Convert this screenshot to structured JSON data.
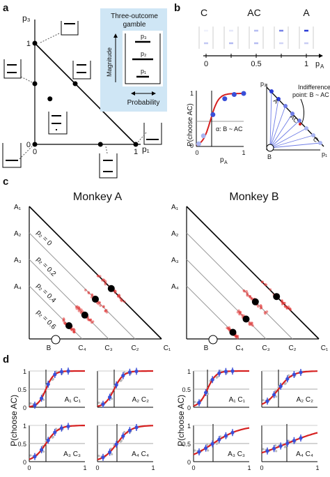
{
  "panels": {
    "a": {
      "letter": "a",
      "y_axis": "p₃",
      "x_axis": "p₁",
      "ticks_x": [
        "0",
        "1"
      ],
      "ticks_y": [
        "0",
        "1"
      ],
      "x_tick_pos": [
        0,
        1
      ],
      "y_tick_pos": [
        0,
        1
      ],
      "points": [
        {
          "p1": 0,
          "p3": 1
        },
        {
          "p1": 0,
          "p3": 0.6
        },
        {
          "p1": 0.4,
          "p3": 0.6
        },
        {
          "p1": 0.15,
          "p3": 0.45
        },
        {
          "p1": 0,
          "p3": 0
        },
        {
          "p1": 0.65,
          "p3": 0
        },
        {
          "p1": 1,
          "p3": 0
        }
      ],
      "inset": {
        "title_line1": "Three-outcome",
        "title_line2": "gamble",
        "magnitude": "Magnitude",
        "probability": "Probability",
        "p3": "p₃",
        "p2": "p₂",
        "p1": "p₁"
      }
    },
    "b": {
      "letter": "b",
      "labels": {
        "C": "C",
        "AC": "AC",
        "A": "A"
      },
      "axis_label": "p",
      "axis_sub": "A",
      "ticks": [
        "0",
        "0.5",
        "1"
      ],
      "psych": {
        "ylabel": "P(choose AC)",
        "ticks_y": [
          "0",
          "1"
        ],
        "ticks_x": [
          "0",
          "1"
        ],
        "xlabel": "p",
        "xlabel_sub": "A",
        "alpha_label": "α: B ~ AC",
        "points": [
          {
            "p": 0.05,
            "v": 0.05
          },
          {
            "p": 0.15,
            "v": 0.2
          },
          {
            "p": 0.35,
            "v": 0.6
          },
          {
            "p": 0.6,
            "v": 0.9
          },
          {
            "p": 0.8,
            "v": 0.98
          },
          {
            "p": 1.0,
            "v": 1.0
          }
        ]
      },
      "triangle": {
        "y_axis": "p₃",
        "x_axis": "p₁",
        "A": "A",
        "AC": "AC",
        "C": "C",
        "B": "B",
        "indifference_line1": "Indifference",
        "indifference_line2": "point: B ~ AC"
      }
    },
    "c": {
      "letter": "c",
      "titles": [
        "Monkey A",
        "Monkey B"
      ],
      "row_labels": [
        "A₁",
        "A₂",
        "A₃",
        "A₄"
      ],
      "col_labels": [
        "B",
        "C₄",
        "C₃",
        "C₂",
        "C₁"
      ],
      "p2_labels": [
        "p₂ = 0",
        "p₂ = 0.2",
        "p₂ = 0.4",
        "p₂ = 0.6"
      ]
    },
    "d": {
      "letter": "d",
      "ylabel": "P(choose AC)",
      "xlabel": "p",
      "xlabel_sub": "A",
      "ticks_x": [
        "0",
        "1"
      ],
      "ticks_y": [
        "0",
        "0.5",
        "1"
      ],
      "subplot_labels_A": [
        "A₁ C₁",
        "A₂ C₂",
        "A₃ C₃",
        "A₄ C₄"
      ],
      "subplot_labels_B": [
        "A₁ C₁",
        "A₂ C₂",
        "A₃ C₃",
        "A₄ C₄"
      ]
    }
  },
  "colors": {
    "curve_red": "#d62020",
    "dot_blue": "#3a4fd8",
    "light_blue": "#a9b4f0",
    "scatter_red": "#e23a3a",
    "inset_bg": "#cfe6f5",
    "gray_line": "#999999"
  }
}
